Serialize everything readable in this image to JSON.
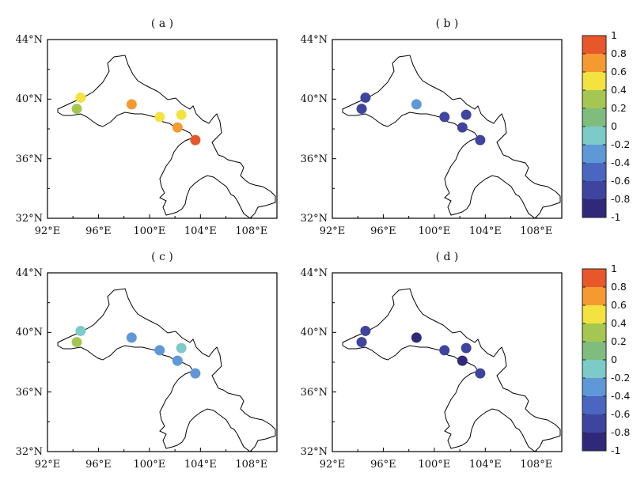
{
  "panels": [
    {
      "id": "a",
      "title": "( a )",
      "values": [
        0.45,
        0.3,
        0.75,
        0.45,
        0.45,
        0.75,
        0.8
      ]
    },
    {
      "id": "b",
      "title": "( b )",
      "values": [
        -0.7,
        -0.7,
        -0.35,
        -0.7,
        -0.7,
        -0.7,
        -0.7
      ]
    },
    {
      "id": "c",
      "title": "( c )",
      "values": [
        -0.05,
        0.3,
        -0.35,
        -0.35,
        -0.05,
        -0.35,
        -0.35
      ]
    },
    {
      "id": "d",
      "title": "( d )",
      "values": [
        -0.75,
        -0.75,
        -0.85,
        -0.75,
        -0.75,
        -0.85,
        -0.75
      ]
    }
  ],
  "stations": [
    {
      "lon": 94.6,
      "lat": 40.1
    },
    {
      "lon": 94.3,
      "lat": 39.35
    },
    {
      "lon": 98.6,
      "lat": 39.65
    },
    {
      "lon": 100.8,
      "lat": 38.8
    },
    {
      "lon": 102.5,
      "lat": 38.95
    },
    {
      "lon": 102.2,
      "lat": 38.1
    },
    {
      "lon": 103.6,
      "lat": 37.25
    }
  ],
  "axes": {
    "x_ticks": [
      92,
      96,
      100,
      104,
      108
    ],
    "x_tick_labels": [
      "92°E",
      "96°E",
      "100°E",
      "104°E",
      "108°E"
    ],
    "y_ticks": [
      32,
      36,
      40,
      44
    ],
    "y_tick_labels": [
      "32°N",
      "36°N",
      "40°N",
      "44°N"
    ],
    "lon_range": [
      92,
      110
    ],
    "lat_range": [
      32,
      44
    ]
  },
  "colorbar": {
    "ticks": [
      1,
      0.8,
      0.6,
      0.4,
      0.2,
      0,
      -0.2,
      -0.4,
      -0.6,
      -0.8,
      -1
    ],
    "tick_labels": [
      "1",
      "0.8",
      "0.6",
      "0.4",
      "0.2",
      "0",
      "-0.2",
      "-0.4",
      "-0.6",
      "-0.8",
      "-1"
    ],
    "colors": [
      "#e8572a",
      "#f59a30",
      "#f3e23f",
      "#a5c751",
      "#7fbd7f",
      "#7ccbc8",
      "#5f98d6",
      "#4a66c1",
      "#3f459e",
      "#30297a"
    ],
    "outline": "#222222"
  },
  "map": {
    "land_fill": "#ffffff",
    "boundary_color": "#000000",
    "marker_edge": "none"
  },
  "chart_data": {
    "type": "scatter",
    "xlabel": "",
    "ylabel": "",
    "xlim": [
      92,
      110
    ],
    "ylim": [
      32,
      44
    ],
    "color_range": [
      -1,
      1
    ],
    "panels": [
      "a",
      "b",
      "c",
      "d"
    ]
  }
}
